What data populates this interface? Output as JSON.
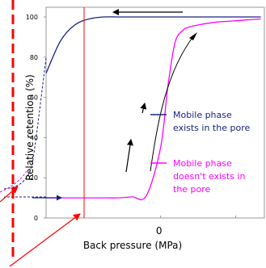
{
  "chart_data": {
    "type": "line",
    "xlabel": "Back pressure (MPa)",
    "ylabel": "Relative retention (%)",
    "ylim": [
      0,
      105
    ],
    "grid": false,
    "y_ticks": [
      0,
      20,
      40,
      60,
      80,
      100
    ],
    "y_tick_labels": [
      "0",
      "20",
      "40",
      "60",
      "80",
      "100"
    ],
    "x_tick_labels": [
      "0"
    ],
    "x": [
      -1.6,
      -1.4,
      -1.2,
      -1.0,
      -0.8,
      -0.6,
      -0.4,
      -0.2,
      0.0,
      0.1,
      0.2,
      0.3,
      0.4,
      0.6,
      0.8,
      1.0,
      1.2,
      1.4
    ],
    "series": [
      {
        "name": "Mobile phase exists in the pore",
        "color": "#1a237e",
        "line_style": "solid",
        "values": [
          72,
          88,
          96,
          99,
          100,
          100,
          100,
          100,
          100,
          100,
          100,
          100,
          100,
          100,
          100,
          100,
          100,
          100
        ]
      },
      {
        "name": "Mobile phase doesn't exists in the pore",
        "color": "#ff00ff",
        "line_style": "solid",
        "values": [
          10,
          10,
          10,
          10,
          10,
          10,
          10.5,
          11,
          35,
          65,
          87,
          93,
          95,
          96.5,
          97.5,
          98,
          98.5,
          99
        ]
      }
    ],
    "legend": [
      {
        "lines": [
          "Mobile phase",
          "exists in the pore"
        ],
        "color": "#1a237e"
      },
      {
        "lines": [
          "Mobile phase",
          "doesn't exists in",
          "the pore"
        ],
        "color": "#ff00ff"
      }
    ],
    "legend_placement": "right",
    "annotations": [
      {
        "kind": "arrow",
        "direction": "left",
        "color": "#000000",
        "note": "top arrow pointing left along 100% plateau"
      },
      {
        "kind": "arrow",
        "direction": "up",
        "color": "#000000",
        "note": "arrows along rising magenta curve"
      },
      {
        "kind": "arrow",
        "direction": "right",
        "color": "#1a237e",
        "note": "arrow along 10% baseline"
      },
      {
        "kind": "vline",
        "color": "#ff0000",
        "note": "red vertical reference line"
      },
      {
        "kind": "dashed-vline",
        "color": "#ff0000",
        "note": "red dashed line at left edge"
      },
      {
        "kind": "arrow",
        "color": "#ff0000",
        "note": "red pointer arrows"
      }
    ]
  }
}
